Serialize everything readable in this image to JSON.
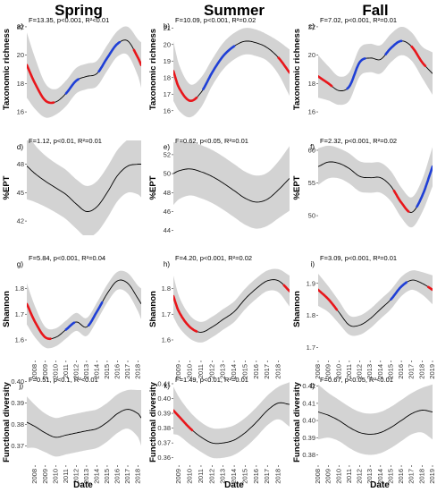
{
  "column_titles": [
    "Spring",
    "Summer",
    "Fall"
  ],
  "x_axis_label": "Date",
  "row_ylabels": [
    "Taxonomic richness",
    "%EPT",
    "Shannon",
    "Functional diversity"
  ],
  "colors": {
    "band": "#d3d3d3",
    "line": "#000000",
    "increase": "#1f3fd6",
    "decrease": "#e8161b"
  },
  "chart_data": [
    {
      "type": "line",
      "panel": "a",
      "row": 0,
      "col": 0,
      "ylabel": "Taxonomic richness",
      "stat": "F=13.35, p<0.001, R²<0.01",
      "xlim": [
        2007.2,
        2018.3
      ],
      "ylim": [
        15.5,
        22.5
      ],
      "yticks": [
        16,
        18,
        20,
        22
      ],
      "xticks": [],
      "x": [
        2007.2,
        2008,
        2009,
        2010,
        2011,
        2012,
        2013,
        2014,
        2015,
        2016,
        2017,
        2018,
        2018.3
      ],
      "y": [
        19.3,
        18.0,
        16.8,
        16.7,
        17.3,
        18.2,
        18.5,
        18.7,
        19.8,
        20.8,
        21.0,
        19.8,
        19.3
      ],
      "band": [
        2.3,
        1.8,
        1.2,
        0.9,
        0.9,
        0.9,
        0.9,
        0.9,
        0.9,
        0.9,
        1.0,
        1.3,
        1.6
      ],
      "red": [
        [
          2007.2,
          2009.8
        ],
        [
          2017.6,
          2018.3
        ]
      ],
      "blue": [
        [
          2011.0,
          2012.2
        ],
        [
          2014.2,
          2016.2
        ]
      ]
    },
    {
      "type": "line",
      "panel": "b",
      "row": 0,
      "col": 1,
      "ylabel": "Taxonomic richness",
      "stat": "F=10.09, p<0.001, R²=0.02",
      "xlim": [
        2008.5,
        2019
      ],
      "ylim": [
        15.5,
        21.5
      ],
      "yticks": [
        16,
        17,
        18,
        19,
        20,
        21
      ],
      "xticks": [],
      "x": [
        2008.5,
        2009,
        2010,
        2011,
        2012,
        2013,
        2014,
        2015,
        2016,
        2017,
        2018,
        2019
      ],
      "y": [
        18.4,
        17.4,
        16.6,
        17.1,
        18.3,
        19.3,
        19.9,
        20.2,
        20.1,
        19.8,
        19.2,
        18.3
      ],
      "band": [
        1.8,
        1.4,
        1.0,
        0.9,
        0.8,
        0.8,
        0.8,
        0.8,
        0.8,
        0.8,
        1.0,
        1.4
      ],
      "red": [
        [
          2008.5,
          2010.6
        ],
        [
          2018.0,
          2019
        ]
      ],
      "blue": [
        [
          2011.2,
          2014.0
        ]
      ]
    },
    {
      "type": "line",
      "panel": "c",
      "row": 0,
      "col": 2,
      "ylabel": "Taxonomic richness",
      "stat": "F=7.02, p<0.001, R²=0.01",
      "xlim": [
        2008,
        2019
      ],
      "ylim": [
        15.5,
        22.5
      ],
      "yticks": [
        16,
        18,
        20,
        22
      ],
      "xticks": [],
      "x": [
        2008,
        2009,
        2010,
        2011,
        2012,
        2013,
        2014,
        2015,
        2016,
        2017,
        2018,
        2019
      ],
      "y": [
        18.5,
        18.0,
        17.5,
        17.8,
        19.5,
        19.8,
        19.7,
        20.5,
        21.0,
        20.6,
        19.5,
        18.7
      ],
      "band": [
        1.5,
        1.2,
        1.0,
        1.0,
        1.0,
        1.0,
        1.0,
        1.0,
        1.0,
        1.0,
        1.1,
        1.5
      ],
      "red": [
        [
          2008,
          2009.3
        ],
        [
          2017.0,
          2018.3
        ]
      ],
      "blue": [
        [
          2010.8,
          2012.5
        ],
        [
          2014.5,
          2016.0
        ]
      ]
    },
    {
      "type": "line",
      "panel": "d",
      "row": 1,
      "col": 0,
      "ylabel": "%EPT",
      "stat": "F=1.12, p<0.01, R²=0.01",
      "xlim": [
        2007.2,
        2018.3
      ],
      "ylim": [
        40.5,
        50.5
      ],
      "yticks": [
        42,
        45,
        48
      ],
      "xticks": [],
      "x": [
        2007.2,
        2008,
        2009,
        2010,
        2011,
        2012,
        2013,
        2014,
        2015,
        2016,
        2017,
        2018,
        2018.3
      ],
      "y": [
        47.8,
        47.0,
        46.2,
        45.5,
        44.8,
        43.8,
        43.0,
        43.5,
        45.0,
        46.8,
        47.8,
        48.0,
        48.0
      ],
      "band": [
        3.5,
        3.0,
        2.7,
        2.6,
        2.6,
        2.6,
        2.7,
        2.7,
        2.7,
        2.7,
        2.8,
        3.2,
        3.5
      ],
      "red": [],
      "blue": []
    },
    {
      "type": "line",
      "panel": "e",
      "row": 1,
      "col": 1,
      "ylabel": "%EPT",
      "stat": "F=0.62, p<0.05, R²=0.01",
      "xlim": [
        2008.5,
        2019
      ],
      "ylim": [
        43.5,
        53.5
      ],
      "yticks": [
        44,
        46,
        48,
        50,
        52
      ],
      "xticks": [],
      "x": [
        2008.5,
        2009,
        2010,
        2011,
        2012,
        2013,
        2014,
        2015,
        2016,
        2017,
        2018,
        2019
      ],
      "y": [
        50.0,
        50.3,
        50.5,
        50.2,
        49.7,
        49.0,
        48.2,
        47.4,
        47.0,
        47.3,
        48.3,
        49.5
      ],
      "band": [
        3.3,
        3.0,
        2.8,
        2.8,
        2.8,
        2.8,
        2.8,
        2.8,
        2.8,
        2.8,
        3.0,
        3.4
      ],
      "red": [],
      "blue": []
    },
    {
      "type": "line",
      "panel": "f",
      "row": 1,
      "col": 2,
      "ylabel": "%EPT",
      "stat": "F=2.32, p<0.001, R²=0.02",
      "xlim": [
        2008,
        2019
      ],
      "ylim": [
        47,
        61.5
      ],
      "yticks": [
        50,
        55,
        60
      ],
      "xticks": [],
      "x": [
        2008,
        2009,
        2010,
        2011,
        2012,
        2013,
        2014,
        2015,
        2016,
        2017,
        2018,
        2019
      ],
      "y": [
        57.5,
        58.2,
        58.0,
        57.2,
        56.0,
        55.8,
        55.8,
        54.5,
        52.0,
        50.5,
        53.0,
        57.5
      ],
      "band": [
        2.8,
        2.5,
        2.3,
        2.3,
        2.3,
        2.3,
        2.3,
        2.3,
        2.3,
        2.3,
        2.5,
        3.0
      ],
      "red": [
        [
          2015.3,
          2016.7
        ]
      ],
      "blue": [
        [
          2017.5,
          2019
        ]
      ]
    },
    {
      "type": "line",
      "panel": "g",
      "row": 2,
      "col": 0,
      "ylabel": "Shannon",
      "stat": "F=5.84, p<0.001, R²=0.04",
      "xlim": [
        2007.2,
        2018.3
      ],
      "ylim": [
        1.52,
        1.92
      ],
      "yticks": [
        1.6,
        1.7,
        1.8
      ],
      "xticks": [
        2008,
        2009,
        2010,
        2011,
        2012,
        2013,
        2014,
        2015,
        2016,
        2017,
        2018
      ],
      "x": [
        2007.2,
        2008,
        2009,
        2010,
        2011,
        2012,
        2013,
        2014,
        2015,
        2016,
        2017,
        2018,
        2018.3
      ],
      "y": [
        1.74,
        1.67,
        1.61,
        1.61,
        1.64,
        1.67,
        1.65,
        1.71,
        1.78,
        1.83,
        1.82,
        1.76,
        1.74
      ],
      "band": [
        0.08,
        0.06,
        0.04,
        0.035,
        0.035,
        0.035,
        0.035,
        0.035,
        0.035,
        0.035,
        0.04,
        0.05,
        0.06
      ],
      "red": [
        [
          2007.2,
          2009.5
        ]
      ],
      "blue": [
        [
          2011.0,
          2011.8
        ],
        [
          2013.2,
          2014.5
        ]
      ]
    },
    {
      "type": "line",
      "panel": "h",
      "row": 2,
      "col": 1,
      "ylabel": "Shannon",
      "stat": "F=4.20, p<0.001, R²=0.02",
      "xlim": [
        2008.5,
        2019
      ],
      "ylim": [
        1.52,
        1.92
      ],
      "yticks": [
        1.6,
        1.7,
        1.8
      ],
      "xticks": [
        2009,
        2010,
        2011,
        2012,
        2013,
        2014,
        2015,
        2016,
        2017,
        2018
      ],
      "x": [
        2008.5,
        2009,
        2010,
        2011,
        2012,
        2013,
        2014,
        2015,
        2016,
        2017,
        2018,
        2019
      ],
      "y": [
        1.77,
        1.71,
        1.65,
        1.63,
        1.65,
        1.68,
        1.71,
        1.76,
        1.8,
        1.83,
        1.83,
        1.79
      ],
      "band": [
        0.08,
        0.06,
        0.045,
        0.04,
        0.04,
        0.04,
        0.04,
        0.04,
        0.04,
        0.04,
        0.045,
        0.06
      ],
      "red": [
        [
          2008.5,
          2010.6
        ],
        [
          2018.5,
          2019
        ]
      ],
      "blue": []
    },
    {
      "type": "line",
      "panel": "i",
      "row": 2,
      "col": 2,
      "ylabel": "Shannon",
      "stat": "F=3.09, p<0.001, R²=0.01",
      "xlim": [
        2008,
        2019
      ],
      "ylim": [
        1.66,
        1.98
      ],
      "yticks": [
        1.7,
        1.8,
        1.9
      ],
      "xticks": [
        2008,
        2009,
        2010,
        2011,
        2012,
        2013,
        2014,
        2015,
        2016,
        2017,
        2018,
        2019
      ],
      "x": [
        2008,
        2009,
        2010,
        2011,
        2012,
        2013,
        2014,
        2015,
        2016,
        2017,
        2018,
        2019
      ],
      "y": [
        1.88,
        1.85,
        1.81,
        1.77,
        1.77,
        1.79,
        1.82,
        1.85,
        1.89,
        1.91,
        1.9,
        1.88
      ],
      "band": [
        0.05,
        0.04,
        0.035,
        0.03,
        0.03,
        0.03,
        0.03,
        0.03,
        0.03,
        0.03,
        0.035,
        0.045
      ],
      "red": [
        [
          2008,
          2009.8
        ],
        [
          2018.6,
          2019
        ]
      ],
      "blue": [
        [
          2015.0,
          2016.5
        ]
      ]
    },
    {
      "type": "line",
      "panel": "j",
      "row": 3,
      "col": 0,
      "ylabel": "Functional diversity",
      "stat": "F=0.51, p<0.1, R²<0.01",
      "xlim": [
        2007.2,
        2018.3
      ],
      "ylim": [
        0.361,
        0.401
      ],
      "yticks": [
        0.37,
        0.38,
        0.39,
        0.4
      ],
      "xticks": [
        2008,
        2009,
        2010,
        2011,
        2012,
        2013,
        2014,
        2015,
        2016,
        2017,
        2018
      ],
      "x": [
        2007.2,
        2008,
        2009,
        2010,
        2011,
        2012,
        2013,
        2014,
        2015,
        2016,
        2017,
        2018,
        2018.3
      ],
      "y": [
        0.381,
        0.379,
        0.376,
        0.374,
        0.375,
        0.376,
        0.377,
        0.378,
        0.381,
        0.385,
        0.387,
        0.385,
        0.383
      ],
      "band": [
        0.012,
        0.01,
        0.009,
        0.009,
        0.009,
        0.009,
        0.009,
        0.009,
        0.009,
        0.009,
        0.009,
        0.011,
        0.013
      ],
      "red": [],
      "blue": []
    },
    {
      "type": "line",
      "panel": "k",
      "row": 3,
      "col": 1,
      "ylabel": "Functional diversity",
      "stat": "F=1.49, p<0.01, R²=0.01",
      "xlim": [
        2008.5,
        2019
      ],
      "ylim": [
        0.355,
        0.413
      ],
      "yticks": [
        0.36,
        0.37,
        0.38,
        0.39,
        0.4,
        0.41
      ],
      "xticks": [
        2009,
        2010,
        2011,
        2012,
        2013,
        2014,
        2015,
        2016,
        2017,
        2018
      ],
      "x": [
        2008.5,
        2009,
        2010,
        2011,
        2012,
        2013,
        2014,
        2015,
        2016,
        2017,
        2018,
        2019
      ],
      "y": [
        0.392,
        0.388,
        0.38,
        0.374,
        0.37,
        0.37,
        0.372,
        0.377,
        0.384,
        0.392,
        0.397,
        0.396
      ],
      "band": [
        0.016,
        0.013,
        0.011,
        0.01,
        0.01,
        0.01,
        0.01,
        0.01,
        0.01,
        0.01,
        0.011,
        0.015
      ],
      "red": [
        [
          2008.5,
          2010.2
        ]
      ],
      "blue": []
    },
    {
      "type": "line",
      "panel": "l",
      "row": 3,
      "col": 2,
      "ylabel": "Functional diversity",
      "stat": "F=0.67, p<0.05, R²<0.01",
      "xlim": [
        2008,
        2019
      ],
      "ylim": [
        0.374,
        0.424
      ],
      "yticks": [
        0.38,
        0.39,
        0.4,
        0.41,
        0.42
      ],
      "xticks": [
        2008,
        2009,
        2010,
        2011,
        2012,
        2013,
        2014,
        2015,
        2016,
        2017,
        2018,
        2019
      ],
      "x": [
        2008,
        2009,
        2010,
        2011,
        2012,
        2013,
        2014,
        2015,
        2016,
        2017,
        2018,
        2019
      ],
      "y": [
        0.405,
        0.403,
        0.4,
        0.396,
        0.393,
        0.392,
        0.393,
        0.396,
        0.4,
        0.404,
        0.406,
        0.405
      ],
      "band": [
        0.016,
        0.013,
        0.012,
        0.012,
        0.012,
        0.012,
        0.012,
        0.012,
        0.012,
        0.012,
        0.013,
        0.016
      ],
      "red": [],
      "blue": []
    }
  ]
}
